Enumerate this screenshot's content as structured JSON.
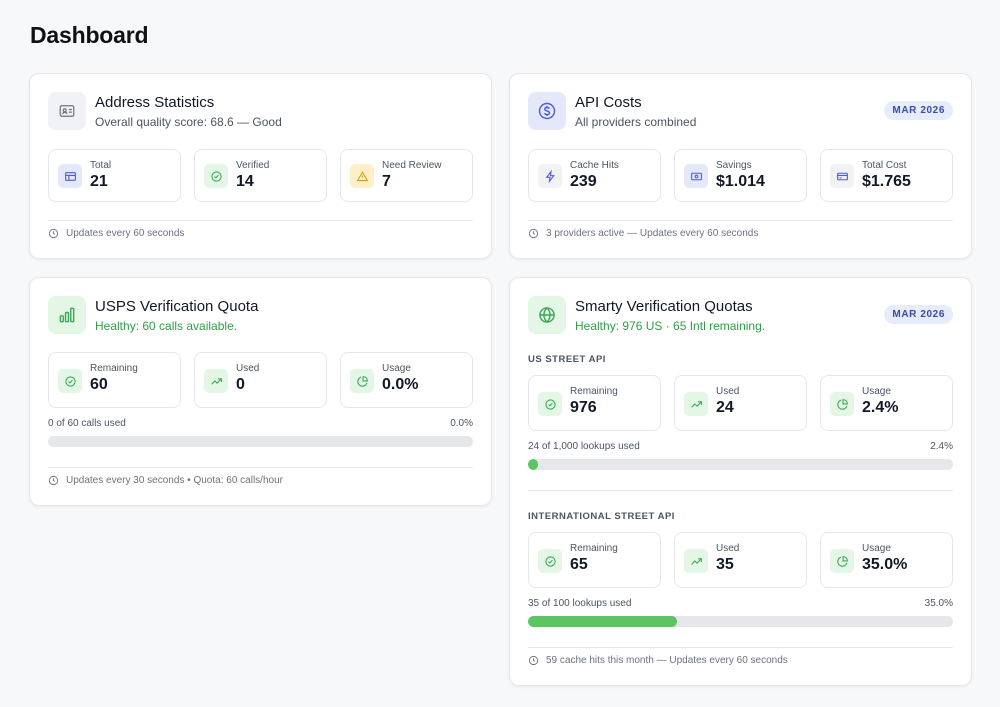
{
  "page": {
    "title": "Dashboard"
  },
  "address_stats": {
    "title": "Address Statistics",
    "subtitle": "Overall quality score: 68.6 — Good",
    "stats": [
      {
        "label": "Total",
        "value": "21",
        "icon": "table-icon"
      },
      {
        "label": "Verified",
        "value": "14",
        "icon": "check-circle-icon"
      },
      {
        "label": "Need Review",
        "value": "7",
        "icon": "warning-icon"
      }
    ],
    "footer": "Updates every 60 seconds"
  },
  "api_costs": {
    "title": "API Costs",
    "subtitle": "All providers combined",
    "badge": "MAR 2026",
    "stats": [
      {
        "label": "Cache Hits",
        "value": "239",
        "icon": "lightning-icon"
      },
      {
        "label": "Savings",
        "value": "$1.014",
        "icon": "money-icon"
      },
      {
        "label": "Total Cost",
        "value": "$1.765",
        "icon": "credit-card-icon"
      }
    ],
    "footer": "3 providers active — Updates every 60 seconds"
  },
  "usps": {
    "title": "USPS Verification Quota",
    "subtitle": "Healthy: 60 calls available.",
    "stats": [
      {
        "label": "Remaining",
        "value": "60",
        "icon": "check-circle-icon"
      },
      {
        "label": "Used",
        "value": "0",
        "icon": "trending-up-icon"
      },
      {
        "label": "Usage",
        "value": "0.0%",
        "icon": "pie-chart-icon"
      }
    ],
    "progress_text": "0 of 60 calls used",
    "progress_pct_text": "0.0%",
    "progress_fraction": 0.0,
    "footer": "Updates every 30 seconds • Quota: 60 calls/hour"
  },
  "smarty": {
    "title": "Smarty Verification Quotas",
    "subtitle": "Healthy: 976 US · 65 Intl remaining.",
    "badge": "MAR 2026",
    "us": {
      "section_label": "US STREET API",
      "stats": [
        {
          "label": "Remaining",
          "value": "976",
          "icon": "check-circle-icon"
        },
        {
          "label": "Used",
          "value": "24",
          "icon": "trending-up-icon"
        },
        {
          "label": "Usage",
          "value": "2.4%",
          "icon": "pie-chart-icon"
        }
      ],
      "progress_text": "24 of 1,000 lookups used",
      "progress_pct_text": "2.4%",
      "progress_fraction": 0.024
    },
    "intl": {
      "section_label": "INTERNATIONAL STREET API",
      "stats": [
        {
          "label": "Remaining",
          "value": "65",
          "icon": "check-circle-icon"
        },
        {
          "label": "Used",
          "value": "35",
          "icon": "trending-up-icon"
        },
        {
          "label": "Usage",
          "value": "35.0%",
          "icon": "pie-chart-icon"
        }
      ],
      "progress_text": "35 of 100 lookups used",
      "progress_pct_text": "35.0%",
      "progress_fraction": 0.35
    },
    "footer": "59 cache hits this month — Updates every 60 seconds"
  },
  "colors": {
    "accent_blue": "#3b4aa8",
    "healthy_green": "#2f9e44",
    "progress_green": "#5cc461",
    "warning_yellow": "#d4a20f"
  }
}
